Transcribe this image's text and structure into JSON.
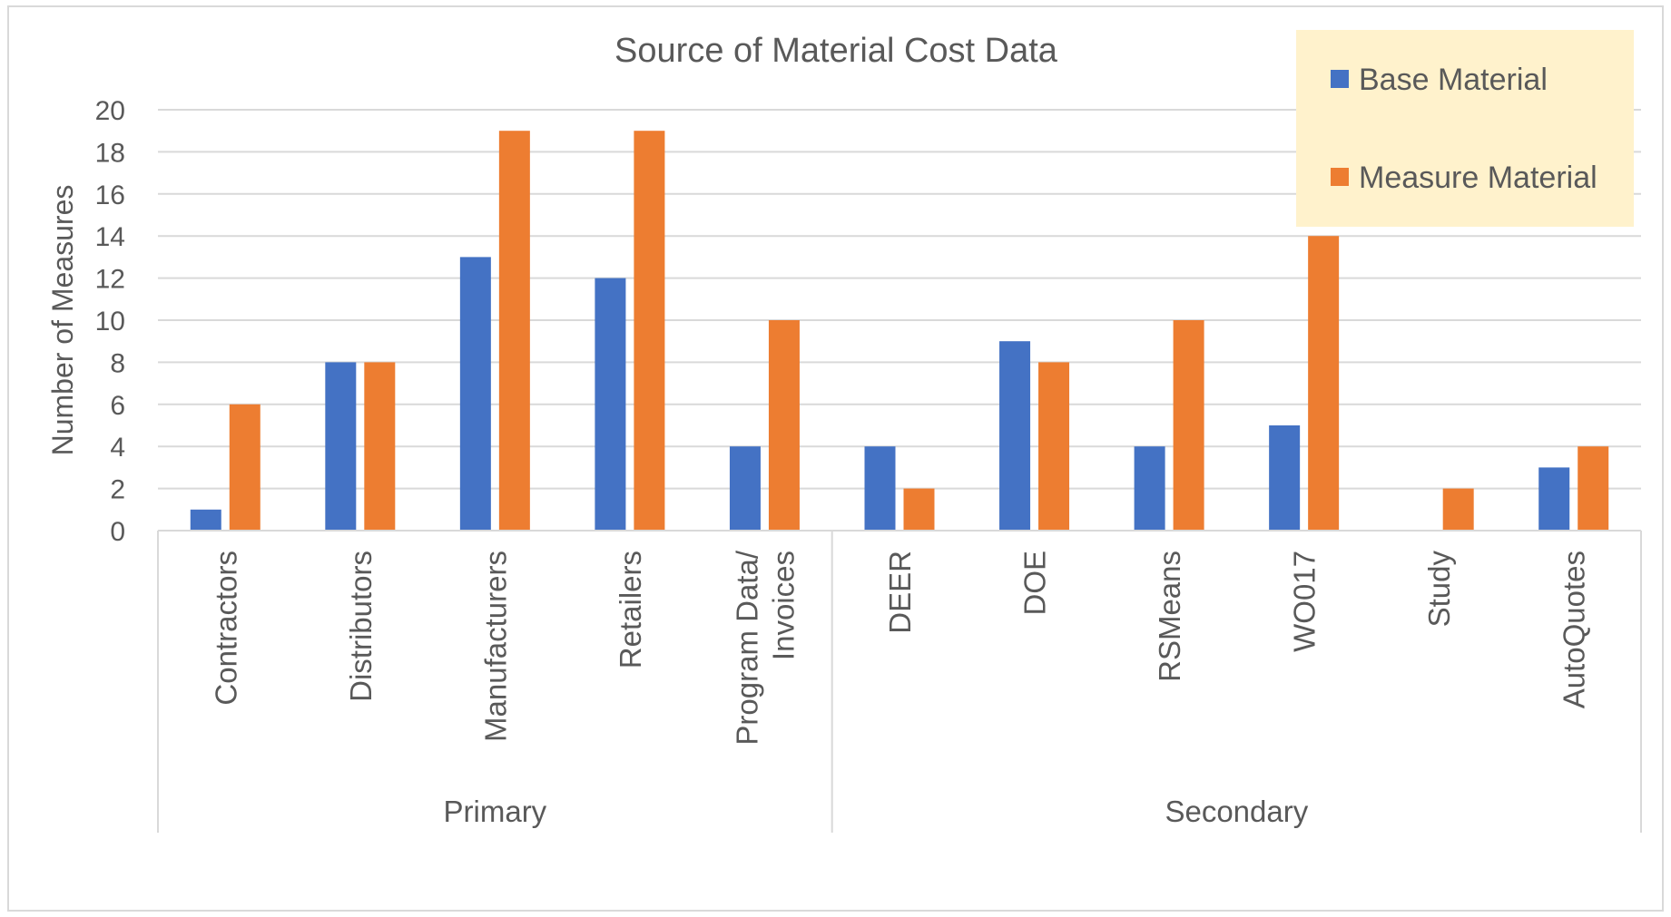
{
  "chart_data": {
    "type": "bar",
    "title": "Source of Material Cost Data",
    "xlabel": "",
    "ylabel": "Number of Measures",
    "ylim": [
      0,
      20
    ],
    "yticks": [
      0,
      2,
      4,
      6,
      8,
      10,
      12,
      14,
      16,
      18,
      20
    ],
    "grid": true,
    "legend_position": "top-right",
    "categories": [
      [
        "Contractors"
      ],
      [
        "Distributors"
      ],
      [
        "Manufacturers"
      ],
      [
        "Retailers"
      ],
      [
        "Program Data/",
        "Invoices"
      ],
      [
        "DEER"
      ],
      [
        "DOE"
      ],
      [
        "RSMeans"
      ],
      [
        "WO017"
      ],
      [
        "Study"
      ],
      [
        "AutoQuotes"
      ]
    ],
    "groups": [
      {
        "label": "Primary",
        "count": 5
      },
      {
        "label": "Secondary",
        "count": 6
      }
    ],
    "series": [
      {
        "name": "Base Material",
        "color": "#4472c4",
        "values": [
          1,
          8,
          13,
          12,
          4,
          4,
          9,
          4,
          5,
          0,
          3
        ]
      },
      {
        "name": "Measure Material",
        "color": "#ed7d31",
        "values": [
          6,
          8,
          19,
          19,
          10,
          2,
          8,
          10,
          14,
          2,
          4
        ]
      }
    ],
    "legend_background": "#fff2cc"
  }
}
